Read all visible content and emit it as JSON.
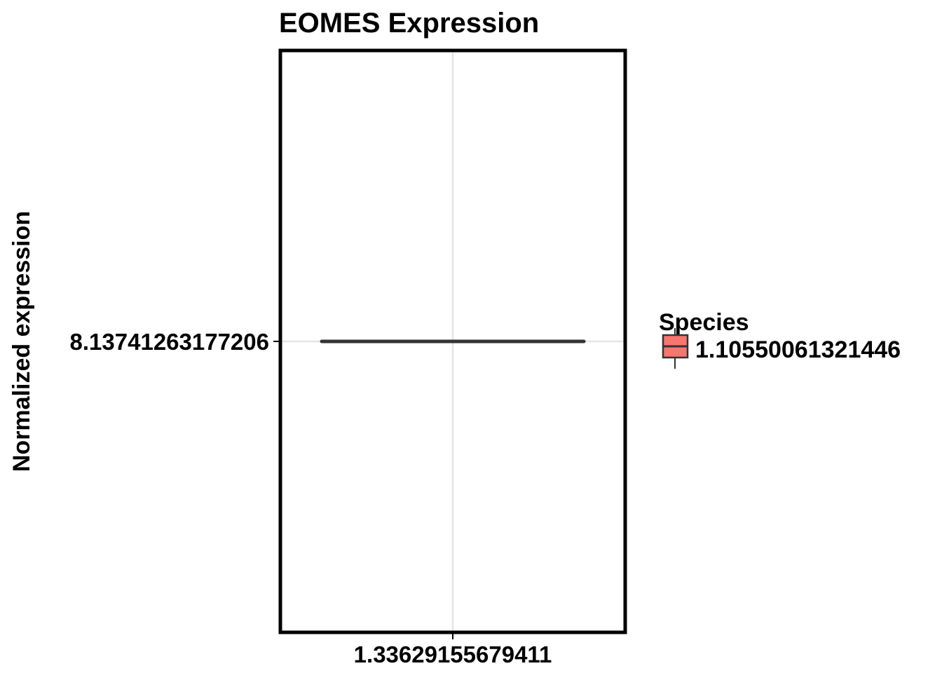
{
  "chart_data": {
    "type": "box",
    "title": "EOMES Expression",
    "xlabel": "",
    "ylabel": "Normalized expression",
    "categories": [
      "1.33629155679411"
    ],
    "y_ticks": [
      "8.13741263177206"
    ],
    "series": [
      {
        "name": "1.10550061321446",
        "color": "#F8766D",
        "boxes": [
          {
            "category": "1.33629155679411",
            "min": 8.13741263177206,
            "q1": 8.13741263177206,
            "median": 8.13741263177206,
            "q3": 8.13741263177206,
            "max": 8.13741263177206
          }
        ]
      }
    ],
    "legend": {
      "title": "Species",
      "position": "right"
    },
    "grid": true
  }
}
